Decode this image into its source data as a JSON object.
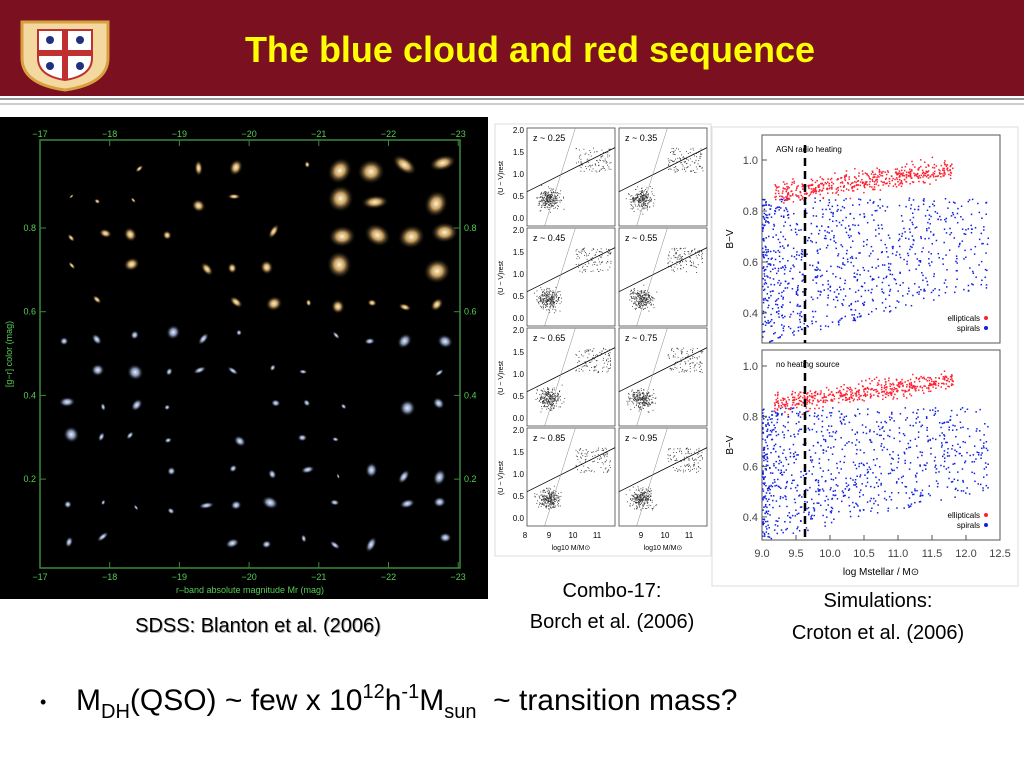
{
  "header": {
    "title": "The blue cloud and red sequence"
  },
  "sdss": {
    "caption": "SDSS: Blanton et al. (2006)",
    "x_label": "r–band absolute magnitude Mr (mag)",
    "y_label": "[g−r] color (mag)",
    "x_ticks": [
      "−17",
      "−18",
      "−19",
      "−20",
      "−21",
      "−22",
      "−23"
    ],
    "y_ticks": [
      "0.8",
      "0.6",
      "0.4",
      "0.2"
    ]
  },
  "combo": {
    "caption": [
      "Combo-17:",
      "Borch et al. (2006)"
    ],
    "panels": [
      "z ~ 0.25",
      "z ~ 0.35",
      "z ~ 0.45",
      "z ~ 0.55",
      "z ~ 0.65",
      "z ~ 0.75",
      "z ~ 0.85",
      "z ~ 0.95"
    ],
    "y_label": "(U − V)rest",
    "x_label": "log10 M/M⊙",
    "y_ticks": [
      "2.0",
      "1.5",
      "1.0",
      "0.5",
      "0.0"
    ],
    "x_ticks_left": [
      "8",
      "9",
      "10",
      "11"
    ],
    "x_ticks_right": [
      "9",
      "10",
      "11"
    ]
  },
  "sim": {
    "caption": [
      "Simulations:",
      "Croton et al. (2006)"
    ],
    "panels": [
      "AGN radio heating",
      "no heating source"
    ],
    "y_label": "B−V",
    "x_label": "log Mstellar / M⊙",
    "y_ticks": [
      "1.0",
      "0.8",
      "0.6",
      "0.4"
    ],
    "x_ticks": [
      "9.0",
      "9.5",
      "10.0",
      "10.5",
      "11.0",
      "11.5",
      "12.0",
      "12.5"
    ],
    "legend": [
      "ellipticals",
      "spirals"
    ]
  },
  "bullet": {
    "parts": [
      "M",
      "DH",
      "(QSO) ~ few x 10",
      "12",
      "h",
      "-1",
      "M",
      "sun",
      "  ~ transition mass?"
    ]
  }
}
